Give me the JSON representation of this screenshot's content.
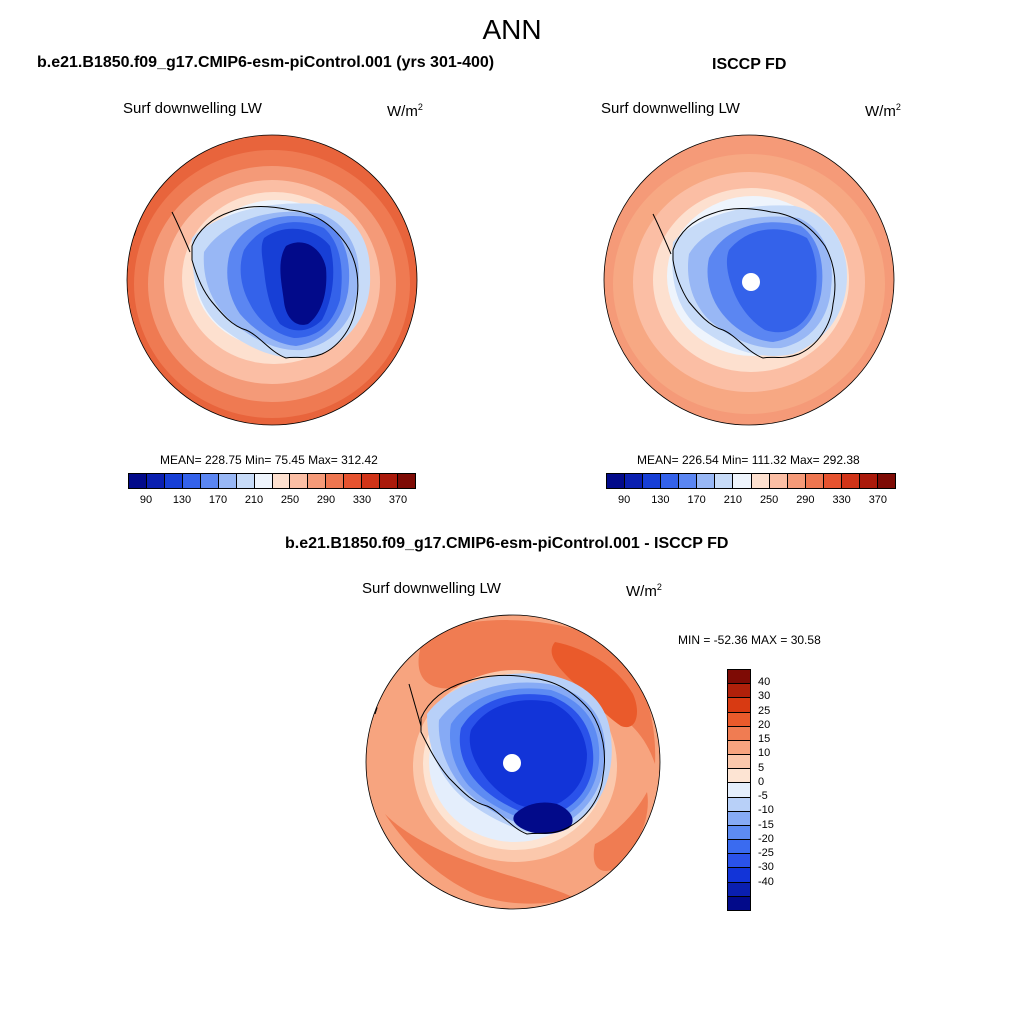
{
  "title": "ANN",
  "colors": {
    "abs_scale": [
      "#020a8a",
      "#0a1fb0",
      "#173fd6",
      "#3462ea",
      "#5b86f2",
      "#98b7f5",
      "#c7dbf8",
      "#eef4fc",
      "#fde0cf",
      "#fbbea4",
      "#f59a78",
      "#ee7650",
      "#e6532f",
      "#d03418",
      "#aa1a0b",
      "#7e0b05"
    ],
    "diff_scale": [
      "#020a8a",
      "#0a1fb0",
      "#1234d8",
      "#2a52ea",
      "#3a6bf0",
      "#5d8bf3",
      "#86aaf5",
      "#b8d0f8",
      "#e4eefc",
      "#fde4d3",
      "#fbc8ac",
      "#f7a47f",
      "#f07c52",
      "#ea5a2b",
      "#d83a12",
      "#b0200a",
      "#7e0b05"
    ]
  },
  "panels": {
    "top_left": {
      "title": "b.e21.B1850.f09_g17.CMIP6-esm-piControl.001 (yrs 301-400)",
      "variable": "Surf downwelling LW",
      "units_base": "W/m",
      "units_exp": "2",
      "stats": "MEAN= 228.75  Min=  75.45  Max= 312.42",
      "mean": 228.75,
      "min": 75.45,
      "max": 312.42,
      "ticks": [
        "90",
        "130",
        "170",
        "210",
        "250",
        "290",
        "330",
        "370"
      ]
    },
    "top_right": {
      "title": "ISCCP FD",
      "variable": "Surf downwelling LW",
      "units_base": "W/m",
      "units_exp": "2",
      "stats": "MEAN= 226.54  Min= 111.32  Max= 292.38",
      "mean": 226.54,
      "min": 111.32,
      "max": 292.38,
      "ticks": [
        "90",
        "130",
        "170",
        "210",
        "250",
        "290",
        "330",
        "370"
      ]
    },
    "bottom": {
      "title": "b.e21.B1850.f09_g17.CMIP6-esm-piControl.001 - ISCCP FD",
      "variable": "Surf downwelling LW",
      "units_base": "W/m",
      "units_exp": "2",
      "stats": "MIN = -52.36 MAX =  30.58",
      "min": -52.36,
      "max": 30.58,
      "ticks": [
        "40",
        "30",
        "25",
        "20",
        "15",
        "10",
        "5",
        "0",
        "-5",
        "-10",
        "-15",
        "-20",
        "-25",
        "-30",
        "-40"
      ]
    }
  }
}
